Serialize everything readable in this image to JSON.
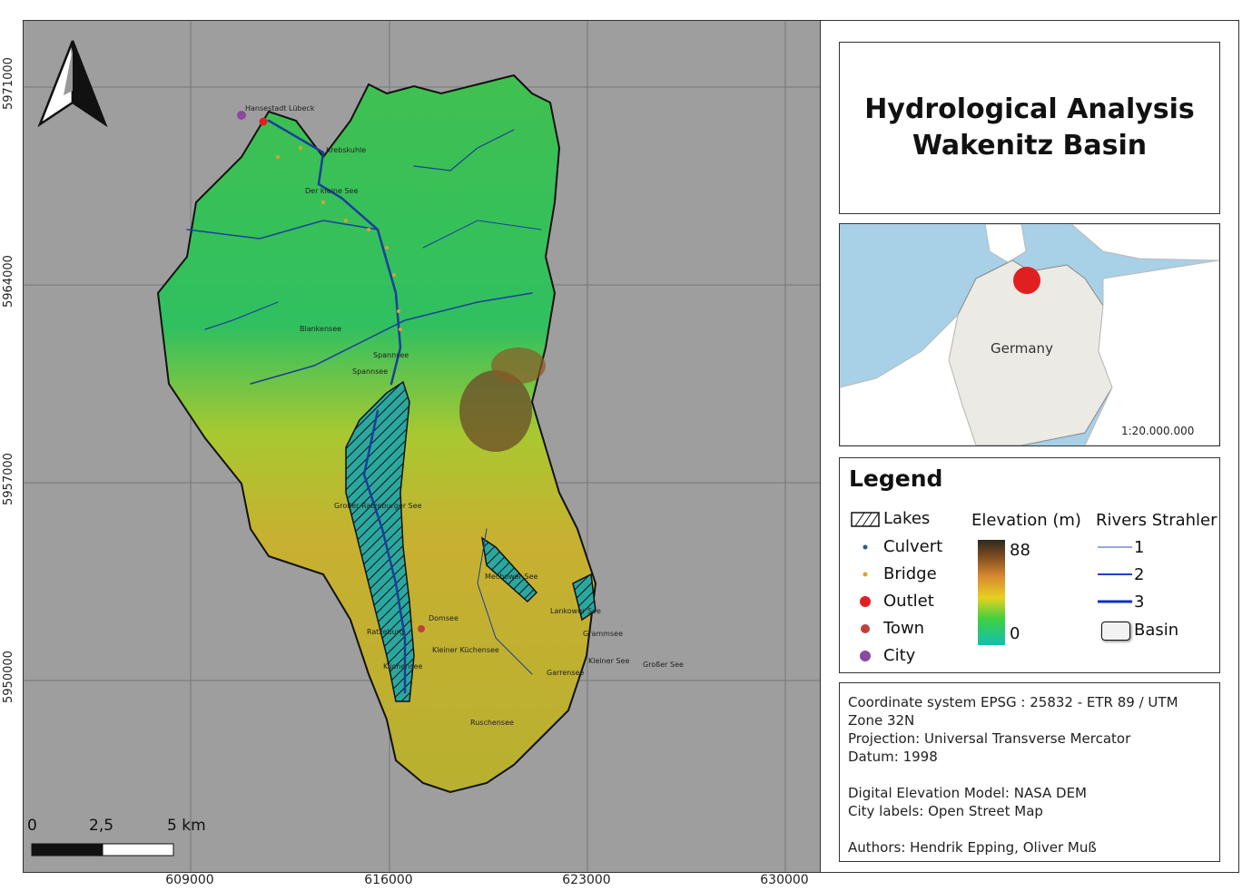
{
  "map": {
    "north_arrow": "north-arrow-icon",
    "y_ticks": [
      "5971000",
      "5964000",
      "5957000",
      "5950000"
    ],
    "x_ticks": [
      "609000",
      "616000",
      "623000",
      "630000"
    ],
    "scalebar": {
      "labels": [
        "0",
        "2,5",
        "5 km"
      ]
    },
    "place_labels": {
      "city": "Hansestadt Lübeck",
      "town": "Ratzeburg",
      "lakes": [
        "Krebskuhle",
        "Der kleine See",
        "Blankensee",
        "Spannsee",
        "Spannsee",
        "Großer Ratzeburger See",
        "Mechower See",
        "Lankower See",
        "Grammsee",
        "Domsee",
        "Kleiner Küchensee",
        "Küchensee",
        "Kleiner See",
        "Großer See",
        "Garrensee",
        "Ruschensee"
      ]
    }
  },
  "title": {
    "line1": "Hydrological Analysis",
    "line2": "Wakenitz Basin"
  },
  "inset": {
    "country_label": "Germany",
    "scale": "1:20.000.000"
  },
  "legend": {
    "title": "Legend",
    "symbols": [
      {
        "label": "Lakes",
        "icon": "hatched-lake-icon"
      },
      {
        "label": "Culvert",
        "color": "#2a5a8a"
      },
      {
        "label": "Bridge",
        "color": "#e0a030"
      },
      {
        "label": "Outlet",
        "color": "#e02020"
      },
      {
        "label": "Town",
        "color": "#c04040"
      },
      {
        "label": "City",
        "color": "#8a4aa0"
      }
    ],
    "elevation": {
      "title": "Elevation (m)",
      "max": "88",
      "min": "0"
    },
    "rivers": {
      "title": "Rivers Strahler",
      "classes": [
        "1",
        "2",
        "3"
      ]
    },
    "basin": "Basin"
  },
  "info": {
    "lines": [
      "Coordinate system EPSG : 25832 - ETR 89 / UTM",
      "Zone 32N",
      "Projection: Universal Transverse Mercator",
      "Datum: 1998",
      "",
      "Digital Elevation Model: NASA DEM",
      "City labels: Open Street Map",
      "",
      "Authors: Hendrik Epping, Oliver Muß"
    ]
  },
  "colors": {
    "water": "#a8d0e6",
    "land": "#eceae4",
    "marker": "#e02020",
    "river": "#1a3f9a"
  }
}
